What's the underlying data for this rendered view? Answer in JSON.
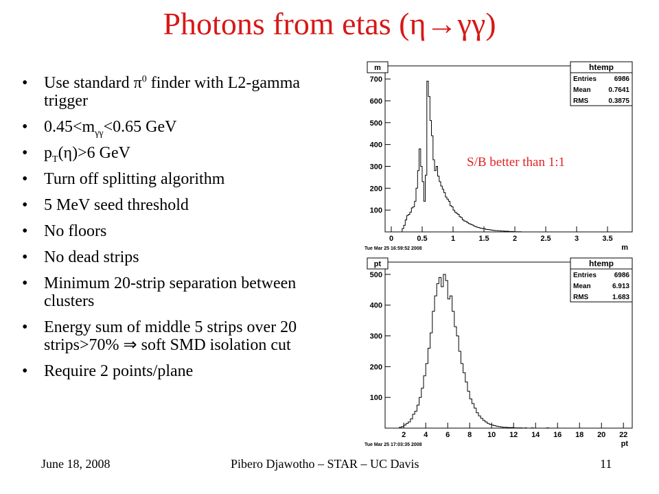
{
  "slide": {
    "title": "Photons from etas (η→γγ)",
    "title_color": "#d81818",
    "bullets": [
      {
        "parts": [
          {
            "t": "Use standard π"
          },
          {
            "sup": "0"
          },
          {
            "t": " finder with L2-gamma trigger"
          }
        ]
      },
      {
        "parts": [
          {
            "t": "0.45<m"
          },
          {
            "sub": "γγ"
          },
          {
            "t": "<0.65 GeV"
          }
        ]
      },
      {
        "parts": [
          {
            "t": "p"
          },
          {
            "sub": "T"
          },
          {
            "t": "(η)>6 GeV"
          }
        ]
      },
      {
        "parts": [
          {
            "t": "Turn off splitting algorithm"
          }
        ]
      },
      {
        "parts": [
          {
            "t": "5 MeV seed threshold"
          }
        ]
      },
      {
        "parts": [
          {
            "t": "No floors"
          }
        ]
      },
      {
        "parts": [
          {
            "t": "No dead strips"
          }
        ]
      },
      {
        "parts": [
          {
            "t": "Minimum 20-strip separation between clusters"
          }
        ]
      },
      {
        "parts": [
          {
            "t": "Energy sum of middle 5 strips over 20 strips>70%  ⇒ soft SMD isolation cut"
          }
        ]
      },
      {
        "parts": [
          {
            "t": "Require 2 points/plane"
          }
        ]
      }
    ],
    "annotation": "S/B better than 1:1",
    "annotation_color": "#e22222",
    "footer_left": "June 18, 2008",
    "footer_center": "Pibero Djawotho – STAR – UC Davis",
    "footer_right": "11"
  },
  "chart_data": [
    {
      "type": "histogram",
      "name_box": "m",
      "xlabel": "m",
      "timestamp": "Tue Mar 25 16:59:52 2008",
      "xlim": [
        -0.1,
        3.9
      ],
      "ylim": [
        0,
        760
      ],
      "xticks": [
        0,
        0.5,
        1,
        1.5,
        2,
        2.5,
        3,
        3.5
      ],
      "xtick_labels": [
        "0",
        "0.5",
        "1",
        "1.5",
        "2",
        "2.5",
        "3",
        "3.5"
      ],
      "yticks": [
        100,
        200,
        300,
        400,
        500,
        600,
        700
      ],
      "stats": {
        "title": "htemp",
        "rows": [
          [
            "Entries",
            "6986"
          ],
          [
            "Mean",
            "0.7641"
          ],
          [
            "RMS",
            "0.3875"
          ]
        ]
      },
      "bin_width": 0.025,
      "x_start": 0.15,
      "values": [
        0,
        15,
        30,
        55,
        75,
        80,
        90,
        110,
        115,
        140,
        200,
        280,
        380,
        300,
        230,
        140,
        260,
        690,
        620,
        510,
        440,
        330,
        280,
        300,
        255,
        230,
        210,
        195,
        180,
        160,
        150,
        140,
        120,
        115,
        100,
        90,
        85,
        80,
        70,
        65,
        55,
        50,
        48,
        42,
        38,
        35,
        32,
        28,
        25,
        22,
        20,
        18,
        16,
        15,
        14,
        12,
        11,
        10,
        9,
        8,
        7,
        6,
        6,
        5,
        5,
        4,
        4,
        3,
        3,
        3,
        2,
        2,
        2,
        1,
        1,
        1,
        1,
        1,
        0,
        0
      ]
    },
    {
      "type": "histogram",
      "name_box": "pt",
      "xlabel": "pt",
      "timestamp": "Tue Mar 25 17:03:35 2008",
      "xlim": [
        0.3,
        22.8
      ],
      "ylim": [
        0,
        540
      ],
      "xticks": [
        2,
        4,
        6,
        8,
        10,
        12,
        14,
        16,
        18,
        20,
        22
      ],
      "xtick_labels": [
        "2",
        "4",
        "6",
        "8",
        "10",
        "12",
        "14",
        "16",
        "18",
        "20",
        "22"
      ],
      "yticks": [
        100,
        200,
        300,
        400,
        500
      ],
      "stats": {
        "title": "htemp",
        "rows": [
          [
            "Entries",
            "6986"
          ],
          [
            "Mean",
            "6.913"
          ],
          [
            "RMS",
            "1.683"
          ]
        ]
      },
      "bin_width": 0.2,
      "x_start": 1.6,
      "values": [
        3,
        5,
        10,
        15,
        20,
        30,
        45,
        55,
        75,
        100,
        130,
        170,
        210,
        260,
        310,
        380,
        430,
        470,
        490,
        460,
        500,
        480,
        420,
        430,
        380,
        330,
        300,
        250,
        210,
        180,
        150,
        120,
        95,
        80,
        65,
        50,
        40,
        32,
        25,
        20,
        15,
        12,
        10,
        8,
        6,
        5,
        4,
        3,
        3,
        2,
        2,
        2,
        1,
        1,
        1,
        1,
        0,
        1,
        0,
        0,
        1,
        0,
        0,
        0,
        0,
        0,
        0,
        1,
        0,
        0
      ]
    }
  ]
}
